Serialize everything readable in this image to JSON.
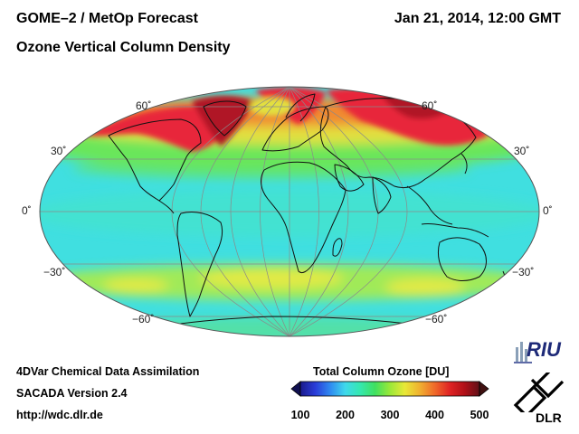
{
  "header": {
    "title_line1": "GOME–2 / MetOp Forecast",
    "title_line2": "Ozone Vertical Column Density",
    "datetime": "Jan 21, 2014, 12:00 GMT"
  },
  "latitude_labels": {
    "n60": "60˚",
    "n30": "30˚",
    "eq": "0˚",
    "s30": "−30˚",
    "s60": "−60˚"
  },
  "footer": {
    "line1": "4DVar Chemical Data Assimilation",
    "line2": "SACADA Version 2.4",
    "line3": "http://wdc.dlr.de"
  },
  "colorbar": {
    "title": "Total Column Ozone [DU]",
    "ticks": [
      "100",
      "200",
      "300",
      "400",
      "500"
    ],
    "stops": [
      "#1a1a8c",
      "#2a3cd8",
      "#2f8af0",
      "#3fd8ec",
      "#35e8b0",
      "#40e060",
      "#9ae838",
      "#e8e838",
      "#f0b030",
      "#f06a2a",
      "#e02424",
      "#b01018",
      "#601018"
    ]
  },
  "logos": {
    "riu": "RIU",
    "dlr": "DLR"
  },
  "map_colors": {
    "background": "#40dfe0",
    "tropics": "#45e5c8",
    "south_band": "#a0ea58",
    "south_band_core": "#e2ea45",
    "antarctic": "#52e0a8",
    "north_green": "#6ae65a",
    "north_yellow": "#e2e040",
    "north_orange": "#f08a30",
    "north_red": "#e8283a",
    "north_darkred": "#b01828",
    "coast": "#111111",
    "grid": "#8a8a8a"
  }
}
